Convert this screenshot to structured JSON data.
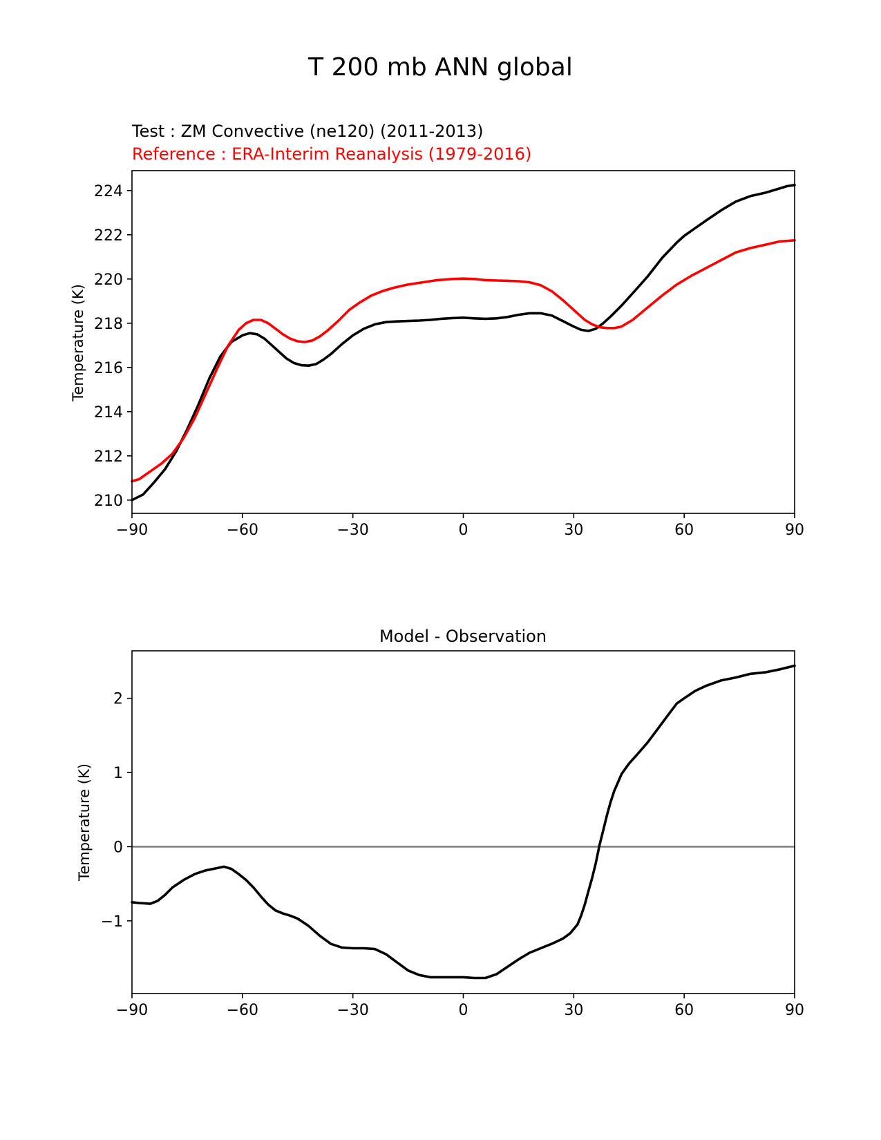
{
  "figure": {
    "suptitle": "T 200 mb ANN global"
  },
  "chart_data": [
    {
      "type": "line",
      "test_label": "Test : ZM Convective (ne120) (2011-2013)",
      "reference_label": "Reference : ERA-Interim Reanalysis (1979-2016)",
      "xlabel": "",
      "ylabel": "Temperature (K)",
      "xlim": [
        -90,
        90
      ],
      "ylim": [
        209.4,
        224.9
      ],
      "xticks": [
        -90,
        -60,
        -30,
        0,
        30,
        60,
        90
      ],
      "xtick_labels": [
        "−90",
        "−60",
        "−30",
        "0",
        "30",
        "60",
        "90"
      ],
      "yticks": [
        210,
        212,
        214,
        216,
        218,
        220,
        222,
        224
      ],
      "ytick_labels": [
        "210",
        "212",
        "214",
        "216",
        "218",
        "220",
        "222",
        "224"
      ],
      "series": [
        {
          "name": "Test : ZM Convective (ne120) (2011-2013)",
          "color": "#000000",
          "x": [
            -90,
            -87,
            -84,
            -81,
            -78,
            -75,
            -72,
            -69,
            -66,
            -63,
            -60,
            -58,
            -56,
            -54,
            -52,
            -50,
            -48,
            -46,
            -44,
            -42,
            -40,
            -38,
            -36,
            -33,
            -30,
            -27,
            -24,
            -21,
            -18,
            -15,
            -12,
            -9,
            -6,
            -3,
            0,
            3,
            6,
            9,
            12,
            15,
            18,
            21,
            24,
            27,
            30,
            32,
            34,
            36,
            38,
            40,
            43,
            46,
            50,
            54,
            58,
            60,
            63,
            66,
            70,
            74,
            78,
            82,
            86,
            88,
            90
          ],
          "values": [
            210.0,
            210.25,
            210.8,
            211.4,
            212.2,
            213.2,
            214.3,
            215.5,
            216.5,
            217.15,
            217.45,
            217.55,
            217.5,
            217.3,
            217.0,
            216.7,
            216.4,
            216.2,
            216.1,
            216.08,
            216.15,
            216.35,
            216.6,
            217.05,
            217.45,
            217.75,
            217.95,
            218.05,
            218.08,
            218.1,
            218.12,
            218.15,
            218.2,
            218.23,
            218.25,
            218.22,
            218.2,
            218.22,
            218.28,
            218.38,
            218.45,
            218.45,
            218.35,
            218.1,
            217.85,
            217.7,
            217.65,
            217.75,
            218.0,
            218.3,
            218.8,
            219.35,
            220.1,
            220.95,
            221.65,
            221.95,
            222.3,
            222.65,
            223.1,
            223.5,
            223.75,
            223.9,
            224.1,
            224.2,
            224.25
          ]
        },
        {
          "name": "Reference : ERA-Interim Reanalysis (1979-2016)",
          "color": "#ff0000",
          "x": [
            -90,
            -88,
            -85,
            -82,
            -79,
            -76,
            -73,
            -70,
            -67,
            -64,
            -61,
            -59,
            -57,
            -55,
            -53,
            -51,
            -49,
            -47,
            -45,
            -43,
            -41,
            -39,
            -37,
            -34,
            -31,
            -28,
            -25,
            -22,
            -19,
            -15,
            -11,
            -7,
            -3,
            0,
            3,
            6,
            9,
            12,
            15,
            18,
            21,
            24,
            27,
            30,
            33,
            35,
            37,
            39,
            41,
            43,
            46,
            50,
            54,
            58,
            62,
            66,
            70,
            74,
            78,
            82,
            86,
            90
          ],
          "values": [
            210.85,
            210.95,
            211.3,
            211.65,
            212.1,
            212.8,
            213.7,
            214.8,
            215.9,
            216.95,
            217.7,
            218.0,
            218.15,
            218.15,
            218.0,
            217.75,
            217.5,
            217.3,
            217.18,
            217.15,
            217.22,
            217.4,
            217.65,
            218.1,
            218.6,
            218.95,
            219.25,
            219.45,
            219.6,
            219.75,
            219.85,
            219.95,
            220.0,
            220.02,
            220.0,
            219.95,
            219.93,
            219.92,
            219.9,
            219.85,
            219.72,
            219.45,
            219.05,
            218.6,
            218.15,
            217.95,
            217.82,
            217.78,
            217.78,
            217.85,
            218.15,
            218.7,
            219.25,
            219.75,
            220.15,
            220.5,
            220.85,
            221.2,
            221.4,
            221.55,
            221.7,
            221.75
          ]
        }
      ]
    },
    {
      "type": "line",
      "title": "Model - Observation",
      "xlabel": "",
      "ylabel": "Temperature (K)",
      "xlim": [
        -90,
        90
      ],
      "ylim": [
        -1.98,
        2.64
      ],
      "xticks": [
        -90,
        -60,
        -30,
        0,
        30,
        60,
        90
      ],
      "xtick_labels": [
        "−90",
        "−60",
        "−30",
        "0",
        "30",
        "60",
        "90"
      ],
      "yticks": [
        -1,
        0,
        1,
        2
      ],
      "ytick_labels": [
        "−1",
        "0",
        "1",
        "2"
      ],
      "zero_line": 0,
      "series": [
        {
          "name": "Model - Observation",
          "color": "#000000",
          "x": [
            -90,
            -88,
            -85,
            -83,
            -81,
            -79,
            -76,
            -73,
            -70,
            -67,
            -65,
            -63,
            -61,
            -59,
            -57,
            -55,
            -53,
            -51,
            -49,
            -47,
            -45,
            -42,
            -39,
            -36,
            -33,
            -30,
            -27,
            -24,
            -21,
            -18,
            -15,
            -12,
            -9,
            -6,
            -3,
            0,
            3,
            6,
            9,
            12,
            15,
            18,
            21,
            24,
            27,
            29,
            31,
            32,
            33,
            34,
            35,
            36,
            37,
            38,
            39,
            40,
            41,
            43,
            45,
            47,
            50,
            53,
            56,
            58,
            60,
            63,
            66,
            70,
            74,
            78,
            82,
            86,
            90
          ],
          "values": [
            -0.75,
            -0.76,
            -0.77,
            -0.73,
            -0.65,
            -0.55,
            -0.45,
            -0.37,
            -0.32,
            -0.29,
            -0.27,
            -0.3,
            -0.37,
            -0.45,
            -0.55,
            -0.67,
            -0.78,
            -0.86,
            -0.9,
            -0.93,
            -0.97,
            -1.07,
            -1.2,
            -1.31,
            -1.36,
            -1.37,
            -1.37,
            -1.38,
            -1.45,
            -1.56,
            -1.67,
            -1.73,
            -1.76,
            -1.76,
            -1.76,
            -1.76,
            -1.77,
            -1.77,
            -1.72,
            -1.62,
            -1.52,
            -1.43,
            -1.37,
            -1.31,
            -1.24,
            -1.17,
            -1.05,
            -0.93,
            -0.78,
            -0.6,
            -0.42,
            -0.22,
            0.02,
            0.22,
            0.42,
            0.6,
            0.75,
            0.98,
            1.12,
            1.23,
            1.4,
            1.6,
            1.8,
            1.93,
            2.0,
            2.1,
            2.17,
            2.24,
            2.28,
            2.33,
            2.35,
            2.39,
            2.44
          ]
        }
      ]
    }
  ]
}
